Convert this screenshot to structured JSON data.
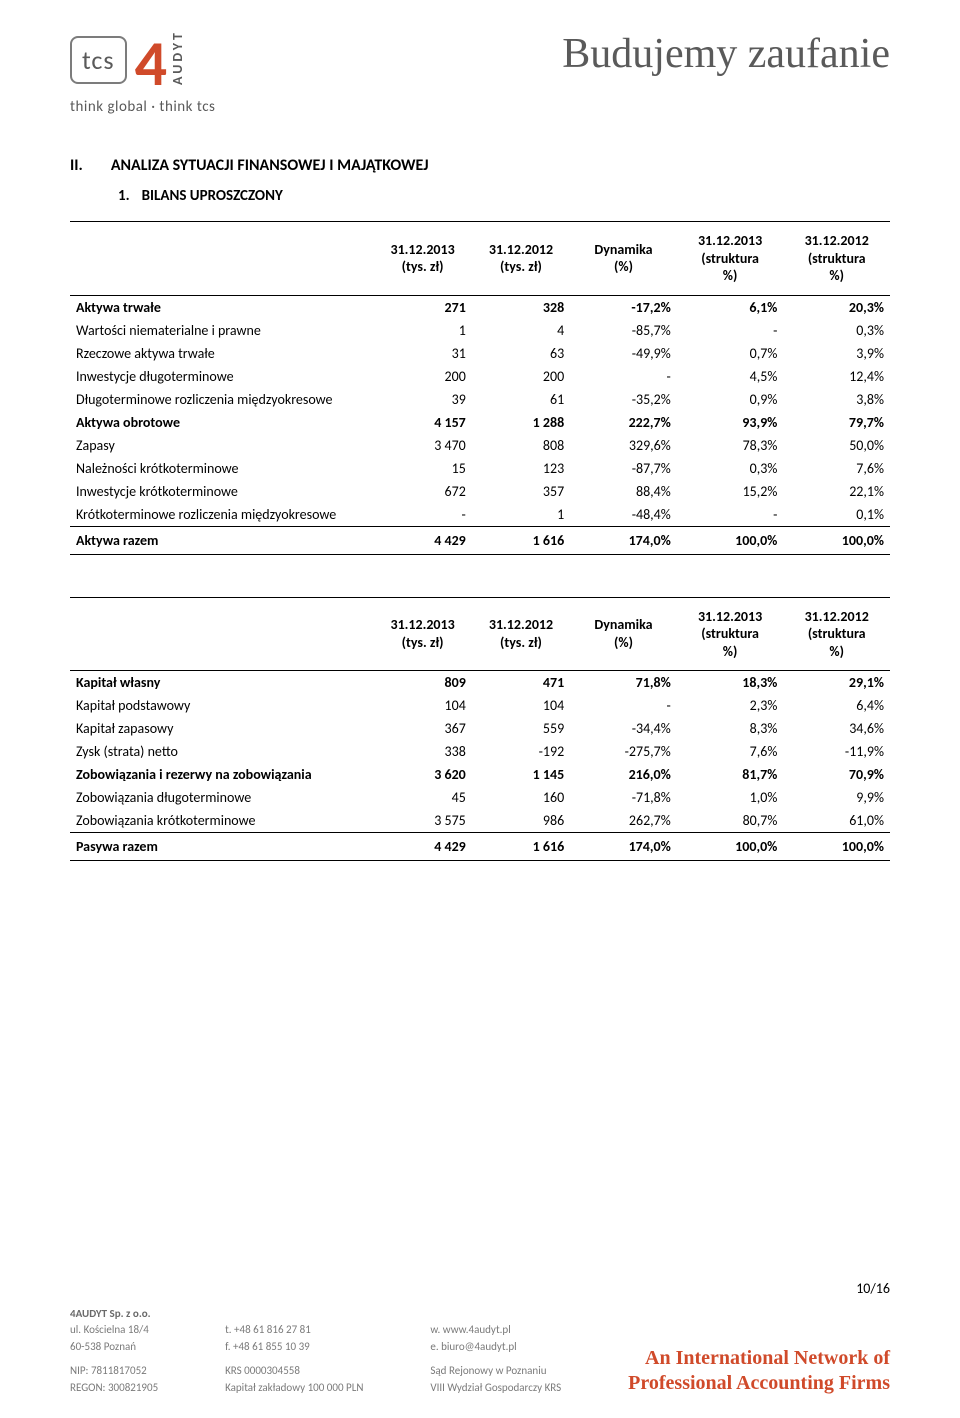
{
  "header": {
    "logo_tcs": "tcs",
    "logo_four": "4",
    "logo_audyt": "AUDYT",
    "tagline": "think global · think tcs",
    "slogan": "Budujemy zaufanie"
  },
  "section": {
    "num": "II.",
    "title": "ANALIZA SYTUACJI FINANSOWEJ I MAJĄTKOWEJ"
  },
  "subsection": {
    "num": "1.",
    "title": "BILANS UPROSZCZONY"
  },
  "columns": {
    "col1": "31.12.2013\n(tys. zł)",
    "col2": "31.12.2012\n(tys. zł)",
    "col3": "Dynamika\n(%)",
    "col4": "31.12.2013\n(struktura\n%)",
    "col5": "31.12.2012\n(struktura\n%)"
  },
  "assets": {
    "rows": [
      {
        "label": "Aktywa trwałe",
        "v": [
          "271",
          "328",
          "-17,2%",
          "6,1%",
          "20,3%"
        ],
        "bold": true
      },
      {
        "label": "Wartości niematerialne i prawne",
        "v": [
          "1",
          "4",
          "-85,7%",
          "-",
          "0,3%"
        ]
      },
      {
        "label": "Rzeczowe aktywa trwałe",
        "v": [
          "31",
          "63",
          "-49,9%",
          "0,7%",
          "3,9%"
        ]
      },
      {
        "label": "Inwestycje długoterminowe",
        "v": [
          "200",
          "200",
          "-",
          "4,5%",
          "12,4%"
        ]
      },
      {
        "label": "Długoterminowe rozliczenia międzyokresowe",
        "v": [
          "39",
          "61",
          "-35,2%",
          "0,9%",
          "3,8%"
        ]
      },
      {
        "label": "Aktywa obrotowe",
        "v": [
          "4 157",
          "1 288",
          "222,7%",
          "93,9%",
          "79,7%"
        ],
        "bold": true
      },
      {
        "label": "Zapasy",
        "v": [
          "3 470",
          "808",
          "329,6%",
          "78,3%",
          "50,0%"
        ]
      },
      {
        "label": "Należności krótkoterminowe",
        "v": [
          "15",
          "123",
          "-87,7%",
          "0,3%",
          "7,6%"
        ]
      },
      {
        "label": "Inwestycje krótkoterminowe",
        "v": [
          "672",
          "357",
          "88,4%",
          "15,2%",
          "22,1%"
        ]
      },
      {
        "label": "Krótkoterminowe rozliczenia międzyokresowe",
        "v": [
          "-",
          "1",
          "-48,4%",
          "-",
          "0,1%"
        ]
      }
    ],
    "total": {
      "label": "Aktywa razem",
      "v": [
        "4 429",
        "1 616",
        "174,0%",
        "100,0%",
        "100,0%"
      ]
    }
  },
  "liabilities": {
    "rows": [
      {
        "label": "Kapitał własny",
        "v": [
          "809",
          "471",
          "71,8%",
          "18,3%",
          "29,1%"
        ],
        "bold": true
      },
      {
        "label": "Kapitał podstawowy",
        "v": [
          "104",
          "104",
          "-",
          "2,3%",
          "6,4%"
        ]
      },
      {
        "label": "Kapitał zapasowy",
        "v": [
          "367",
          "559",
          "-34,4%",
          "8,3%",
          "34,6%"
        ]
      },
      {
        "label": "Zysk (strata) netto",
        "v": [
          "338",
          "-192",
          "-275,7%",
          "7,6%",
          "-11,9%"
        ]
      },
      {
        "label": "Zobowiązania i rezerwy na zobowiązania",
        "v": [
          "3 620",
          "1 145",
          "216,0%",
          "81,7%",
          "70,9%"
        ],
        "bold": true
      },
      {
        "label": "Zobowiązania długoterminowe",
        "v": [
          "45",
          "160",
          "-71,8%",
          "1,0%",
          "9,9%"
        ]
      },
      {
        "label": "Zobowiązania krótkoterminowe",
        "v": [
          "3 575",
          "986",
          "262,7%",
          "80,7%",
          "61,0%"
        ]
      }
    ],
    "total": {
      "label": "Pasywa razem",
      "v": [
        "4 429",
        "1 616",
        "174,0%",
        "100,0%",
        "100,0%"
      ]
    }
  },
  "footer": {
    "page": "10/16",
    "company": {
      "name": "4AUDYT Sp. z o.o.",
      "addr1": "ul. Kościelna 18/4",
      "addr2": "60-538 Poznań",
      "nip": "NIP: 7811817052",
      "regon": "REGON: 300821905"
    },
    "contact": {
      "t1": "t. +48 61 816 27 81",
      "t2": "f. +48 61 855 10 39",
      "krs1": "KRS 0000304558",
      "krs2": "Kapitał zakładowy 100 000 PLN"
    },
    "web": {
      "w": "w. www.4audyt.pl",
      "e": "e. biuro@4audyt.pl",
      "court1": "Sąd Rejonowy w Poznaniu",
      "court2": "VIII Wydział Gospodarczy KRS"
    },
    "brand1": "An International Network of",
    "brand2": "Professional Accounting Firms"
  },
  "colors": {
    "accent": "#d04a2a",
    "text_muted": "#7a7a7a",
    "border": "#000000",
    "background": "#ffffff"
  },
  "typography": {
    "body_font": "Calibri",
    "slogan_font": "Times New Roman",
    "body_size_pt": 11,
    "heading_size_pt": 12,
    "slogan_size_pt": 32
  }
}
